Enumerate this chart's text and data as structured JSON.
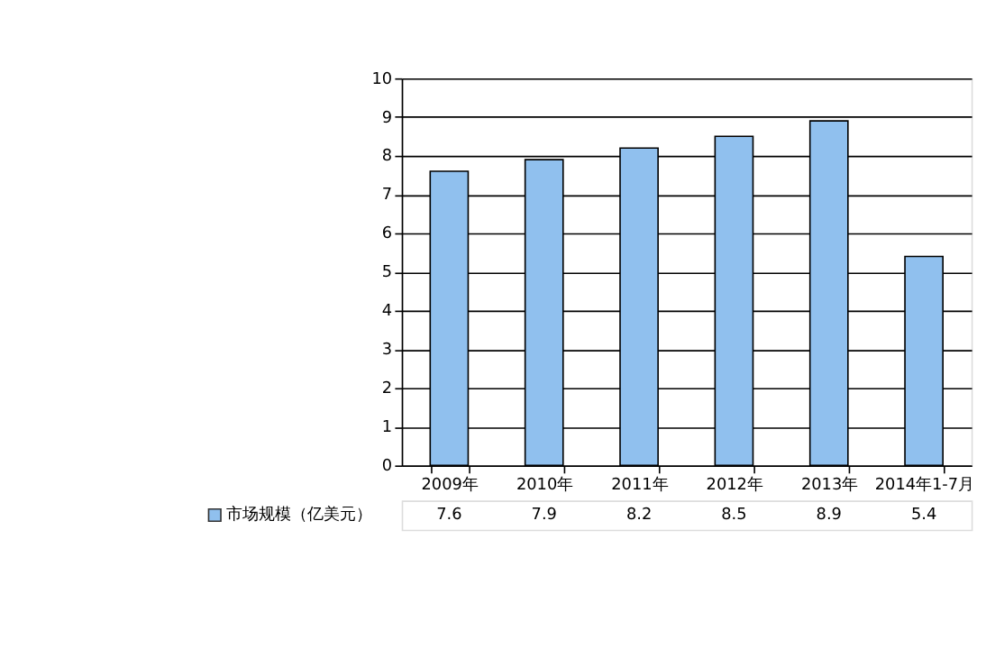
{
  "chart_data": {
    "type": "bar",
    "categories": [
      "2009年",
      "2010年",
      "2011年",
      "2012年",
      "2013年",
      "2014年1-7月"
    ],
    "series": [
      {
        "name": "市场规模（亿美元）",
        "color": "#90c0ee",
        "values": [
          7.6,
          7.9,
          8.2,
          8.5,
          8.9,
          5.4
        ]
      }
    ],
    "ylim": [
      0,
      10
    ],
    "yticks": [
      0,
      1,
      2,
      3,
      4,
      5,
      6,
      7,
      8,
      9,
      10
    ],
    "grid": "y",
    "legend": "bottom left",
    "data_labels": true
  }
}
